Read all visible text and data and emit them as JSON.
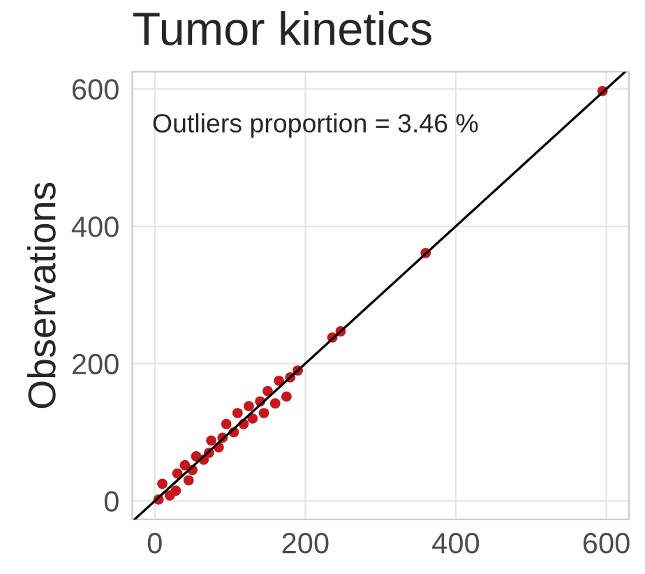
{
  "chart_data": {
    "type": "scatter",
    "title": "Tumor kinetics",
    "ylabel": "Observations",
    "annotations": [
      "Outliers proportion = 3.46 %"
    ],
    "xlim": [
      -30,
      630
    ],
    "ylim": [
      -27,
      625
    ],
    "xticks": [
      0,
      200,
      400,
      600
    ],
    "yticks": [
      0,
      200,
      400,
      600
    ],
    "grid": true,
    "series": [
      {
        "color": "#c8161d",
        "marker": "circle",
        "x": [
          5,
          10,
          20,
          30,
          28,
          40,
          45,
          55,
          50,
          65,
          75,
          72,
          85,
          95,
          90,
          105,
          110,
          118,
          125,
          130,
          140,
          145,
          150,
          160,
          165,
          175,
          180,
          190,
          236,
          247,
          360,
          595
        ],
        "values": [
          2,
          25,
          8,
          40,
          15,
          52,
          30,
          65,
          45,
          60,
          88,
          70,
          78,
          112,
          92,
          100,
          128,
          112,
          138,
          120,
          145,
          128,
          160,
          142,
          175,
          152,
          180,
          190,
          238,
          247,
          361,
          597
        ]
      },
      {
        "type": "line",
        "color": "#000000",
        "marker": "none",
        "x": [
          -27,
          625
        ],
        "values": [
          -27,
          625
        ]
      }
    ]
  }
}
